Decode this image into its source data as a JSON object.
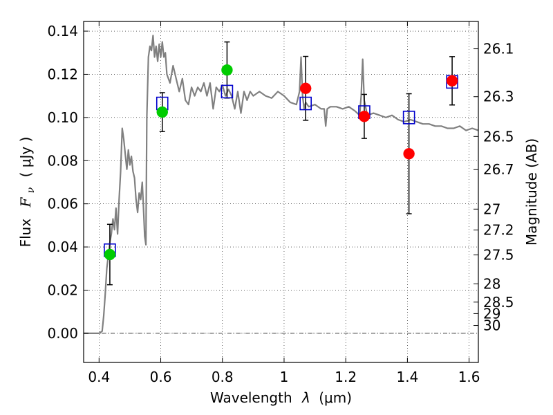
{
  "chart_data": {
    "type": "scatter",
    "xlabel_text": "Wavelength",
    "xlabel_symbol": "λ",
    "xlabel_unit": "(μm)",
    "ylabel_text": "Flux",
    "ylabel_symbol": "F",
    "ylabel_symbol_sub": "ν",
    "ylabel_unit": "( μJy )",
    "ylabel_right": "Magnitude (AB)",
    "xlim": [
      0.35,
      1.63
    ],
    "ylim": [
      -0.0135,
      0.1445
    ],
    "grid": true,
    "x_ticks": [
      {
        "value": 0.4,
        "label": "0.4"
      },
      {
        "value": 0.6,
        "label": "0.6"
      },
      {
        "value": 0.8,
        "label": "0.8"
      },
      {
        "value": 1.0,
        "label": "1"
      },
      {
        "value": 1.2,
        "label": "1.2"
      },
      {
        "value": 1.4,
        "label": "1.4"
      },
      {
        "value": 1.6,
        "label": "1.6"
      }
    ],
    "y_ticks": [
      {
        "value": 0.0,
        "label": "0.00"
      },
      {
        "value": 0.02,
        "label": "0.02"
      },
      {
        "value": 0.04,
        "label": "0.04"
      },
      {
        "value": 0.06,
        "label": "0.06"
      },
      {
        "value": 0.08,
        "label": "0.08"
      },
      {
        "value": 0.1,
        "label": "0.10"
      },
      {
        "value": 0.12,
        "label": "0.12"
      },
      {
        "value": 0.14,
        "label": "0.14"
      }
    ],
    "right_ticks": [
      {
        "value": 26.1,
        "label": "26.1"
      },
      {
        "value": 26.3,
        "label": "26.3"
      },
      {
        "value": 26.5,
        "label": "26.5"
      },
      {
        "value": 26.7,
        "label": "26.7"
      },
      {
        "value": 27,
        "label": "27"
      },
      {
        "value": 27.2,
        "label": "27.2"
      },
      {
        "value": 27.5,
        "label": "27.5"
      },
      {
        "value": 28,
        "label": "28"
      },
      {
        "value": 28.5,
        "label": "28.5"
      },
      {
        "value": 29,
        "label": "29"
      },
      {
        "value": 30,
        "label": "30"
      }
    ],
    "model_spectrum": {
      "color": "#808080",
      "x": [
        0.35,
        0.4,
        0.41,
        0.415,
        0.42,
        0.425,
        0.43,
        0.435,
        0.44,
        0.445,
        0.45,
        0.455,
        0.46,
        0.465,
        0.47,
        0.475,
        0.48,
        0.485,
        0.49,
        0.495,
        0.5,
        0.505,
        0.51,
        0.515,
        0.52,
        0.525,
        0.53,
        0.535,
        0.54,
        0.545,
        0.548,
        0.552,
        0.555,
        0.56,
        0.565,
        0.57,
        0.575,
        0.58,
        0.585,
        0.59,
        0.595,
        0.6,
        0.605,
        0.61,
        0.615,
        0.62,
        0.625,
        0.63,
        0.64,
        0.65,
        0.66,
        0.67,
        0.68,
        0.69,
        0.7,
        0.71,
        0.72,
        0.73,
        0.74,
        0.75,
        0.76,
        0.77,
        0.78,
        0.79,
        0.8,
        0.81,
        0.82,
        0.83,
        0.84,
        0.85,
        0.86,
        0.87,
        0.88,
        0.89,
        0.9,
        0.92,
        0.94,
        0.96,
        0.98,
        1.0,
        1.02,
        1.04,
        1.05,
        1.055,
        1.06,
        1.065,
        1.07,
        1.08,
        1.1,
        1.12,
        1.13,
        1.135,
        1.14,
        1.15,
        1.17,
        1.19,
        1.21,
        1.23,
        1.245,
        1.25,
        1.255,
        1.26,
        1.27,
        1.29,
        1.31,
        1.33,
        1.35,
        1.37,
        1.39,
        1.41,
        1.43,
        1.45,
        1.47,
        1.49,
        1.51,
        1.53,
        1.55,
        1.57,
        1.59,
        1.61,
        1.63
      ],
      "y": [
        0.0,
        0.0,
        0.001,
        0.008,
        0.018,
        0.03,
        0.036,
        0.042,
        0.046,
        0.053,
        0.048,
        0.058,
        0.046,
        0.062,
        0.075,
        0.095,
        0.09,
        0.083,
        0.076,
        0.085,
        0.078,
        0.082,
        0.075,
        0.072,
        0.062,
        0.056,
        0.065,
        0.062,
        0.07,
        0.055,
        0.045,
        0.041,
        0.1,
        0.128,
        0.133,
        0.131,
        0.138,
        0.128,
        0.133,
        0.126,
        0.134,
        0.128,
        0.135,
        0.128,
        0.13,
        0.12,
        0.118,
        0.116,
        0.124,
        0.118,
        0.112,
        0.118,
        0.108,
        0.106,
        0.114,
        0.11,
        0.114,
        0.112,
        0.116,
        0.11,
        0.116,
        0.104,
        0.114,
        0.112,
        0.115,
        0.11,
        0.113,
        0.11,
        0.104,
        0.112,
        0.102,
        0.112,
        0.108,
        0.112,
        0.11,
        0.112,
        0.11,
        0.109,
        0.112,
        0.11,
        0.107,
        0.106,
        0.112,
        0.128,
        0.11,
        0.104,
        0.107,
        0.105,
        0.106,
        0.104,
        0.104,
        0.096,
        0.104,
        0.105,
        0.105,
        0.104,
        0.105,
        0.103,
        0.101,
        0.11,
        0.127,
        0.108,
        0.101,
        0.102,
        0.101,
        0.1,
        0.101,
        0.099,
        0.098,
        0.099,
        0.098,
        0.097,
        0.097,
        0.096,
        0.096,
        0.095,
        0.095,
        0.096,
        0.094,
        0.095,
        0.094
      ]
    },
    "model_photometry": {
      "name": "",
      "marker": "open-square",
      "color": "#0000cc",
      "points": [
        {
          "x": 0.435,
          "y": 0.0385
        },
        {
          "x": 0.605,
          "y": 0.1065
        },
        {
          "x": 0.815,
          "y": 0.112
        },
        {
          "x": 1.07,
          "y": 0.1065
        },
        {
          "x": 1.26,
          "y": 0.1025
        },
        {
          "x": 1.405,
          "y": 0.1
        },
        {
          "x": 1.545,
          "y": 0.1165
        }
      ]
    },
    "optical_detections": {
      "name": "",
      "marker": "filled-circle",
      "color": "#00cc00",
      "points": [
        {
          "x": 0.435,
          "y": 0.0365,
          "err": 0.014
        },
        {
          "x": 0.605,
          "y": 0.1025,
          "err": 0.009
        },
        {
          "x": 0.815,
          "y": 0.122,
          "err": 0.013
        }
      ]
    },
    "nir_detections": {
      "name": "",
      "marker": "filled-circle",
      "color": "#ff0000",
      "points": [
        {
          "x": 1.07,
          "y": 0.1135,
          "err": 0.0148
        },
        {
          "x": 1.26,
          "y": 0.1005,
          "err": 0.0102
        },
        {
          "x": 1.405,
          "y": 0.0832,
          "err": 0.0278
        },
        {
          "x": 1.545,
          "y": 0.117,
          "err": 0.0112
        }
      ]
    }
  }
}
